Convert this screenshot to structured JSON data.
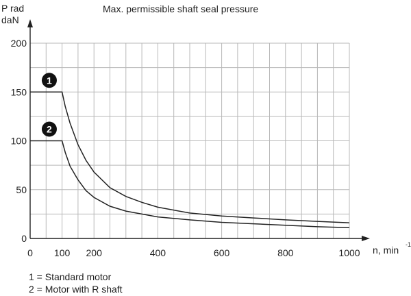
{
  "chart_data": {
    "type": "line",
    "title": "Max. permissible shaft seal pressure",
    "ylabel_line1": "P rad",
    "ylabel_line2": "daN",
    "xlabel": "n, min",
    "xlabel_exponent": "-1",
    "xlim": [
      0,
      1000
    ],
    "ylim": [
      0,
      200
    ],
    "x_ticks": [
      "0",
      "100",
      "200",
      "400",
      "600",
      "800",
      "1000"
    ],
    "y_ticks": [
      "0",
      "50",
      "100",
      "150",
      "200"
    ],
    "grid": true,
    "series": [
      {
        "marker": "1",
        "points": [
          [
            0,
            150
          ],
          [
            100,
            150
          ],
          [
            110,
            135
          ],
          [
            125,
            118
          ],
          [
            150,
            96
          ],
          [
            175,
            80
          ],
          [
            200,
            68
          ],
          [
            250,
            52
          ],
          [
            300,
            43
          ],
          [
            350,
            37
          ],
          [
            400,
            32
          ],
          [
            500,
            26
          ],
          [
            600,
            23
          ],
          [
            700,
            21
          ],
          [
            800,
            19
          ],
          [
            900,
            17.5
          ],
          [
            1000,
            16
          ]
        ]
      },
      {
        "marker": "2",
        "points": [
          [
            0,
            100
          ],
          [
            100,
            100
          ],
          [
            110,
            88
          ],
          [
            125,
            74
          ],
          [
            150,
            60
          ],
          [
            175,
            49
          ],
          [
            200,
            42
          ],
          [
            250,
            33
          ],
          [
            300,
            28
          ],
          [
            350,
            25
          ],
          [
            400,
            22
          ],
          [
            500,
            19
          ],
          [
            600,
            16.5
          ],
          [
            700,
            15
          ],
          [
            800,
            13.5
          ],
          [
            900,
            12
          ],
          [
            1000,
            11
          ]
        ]
      }
    ],
    "legend_notes": [
      "1 = Standard motor",
      "2 = Motor with R shaft"
    ]
  }
}
